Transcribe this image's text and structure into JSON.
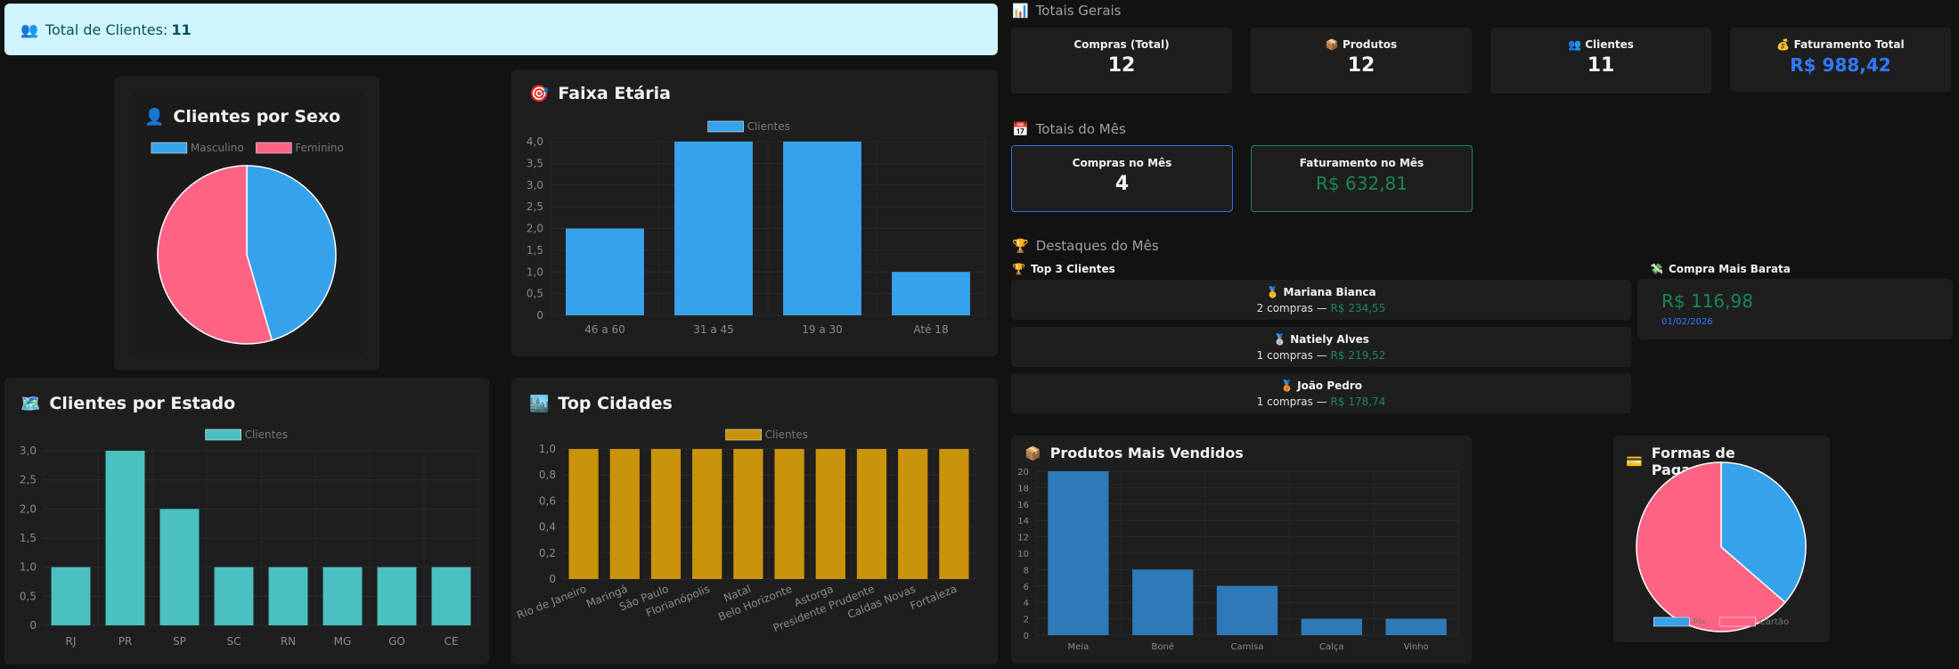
{
  "alert": {
    "icon": "👥",
    "label": "Total de Clientes:",
    "value": "11"
  },
  "sexo": {
    "title": "Clientes por Sexo",
    "icon": "👤",
    "chart_data": {
      "type": "pie",
      "categories": [
        "Masculino",
        "Feminino"
      ],
      "values": [
        5,
        6
      ],
      "colors": [
        "#36a2eb",
        "#ff6384"
      ],
      "legend": "top"
    }
  },
  "faixa": {
    "title": "Faixa Etária",
    "icon": "🎯",
    "chart_data": {
      "type": "bar",
      "categories": [
        "46 a 60",
        "31 a 45",
        "19 a 30",
        "Até 18"
      ],
      "series": [
        {
          "name": "Clientes",
          "values": [
            2,
            4,
            4,
            1
          ],
          "color": "#36a2eb"
        }
      ],
      "ylim": [
        0,
        4
      ],
      "yticks": [
        "0",
        "0,5",
        "1,0",
        "1,5",
        "2,0",
        "2,5",
        "3,0",
        "3,5",
        "4,0"
      ],
      "grid": true,
      "legend": "top"
    }
  },
  "estado": {
    "title": "Clientes por Estado",
    "icon": "🗺️",
    "chart_data": {
      "type": "bar",
      "categories": [
        "RJ",
        "PR",
        "SP",
        "SC",
        "RN",
        "MG",
        "GO",
        "CE"
      ],
      "series": [
        {
          "name": "Clientes",
          "values": [
            1,
            3,
            2,
            1,
            1,
            1,
            1,
            1
          ],
          "color": "#4bc0c0"
        }
      ],
      "ylim": [
        0,
        3
      ],
      "yticks": [
        "0",
        "0,5",
        "1,0",
        "1,5",
        "2,0",
        "2,5",
        "3,0"
      ],
      "grid": true,
      "legend": "top"
    }
  },
  "cidades": {
    "title": "Top Cidades",
    "icon": "🏙️",
    "chart_data": {
      "type": "bar",
      "categories": [
        "Rio de Janeiro",
        "Maringá",
        "São Paulo",
        "Florianópolis",
        "Natal",
        "Belo Horizonte",
        "Astorga",
        "Presidente Prudente",
        "Caldas Novas",
        "Fortaleza"
      ],
      "series": [
        {
          "name": "Clientes",
          "values": [
            1,
            1,
            1,
            1,
            1,
            1,
            1,
            1,
            1,
            1
          ],
          "color": "#c9930a"
        }
      ],
      "ylim": [
        0,
        1
      ],
      "yticks": [
        "0",
        "0,2",
        "0,4",
        "0,6",
        "0,8",
        "1,0"
      ],
      "grid": true,
      "legend": "top"
    }
  },
  "totais": {
    "title": "Totais Gerais",
    "icon": "📊",
    "items": [
      {
        "icon": "",
        "label": "Compras (Total)",
        "value": "12"
      },
      {
        "icon": "📦",
        "label": "Produtos",
        "value": "12"
      },
      {
        "icon": "👥",
        "label": "Clientes",
        "value": "11"
      },
      {
        "icon": "💰",
        "label": "Faturamento Total",
        "value": "R$ 988,42"
      }
    ]
  },
  "mes": {
    "title": "Totais do Mês",
    "icon": "📅",
    "items": [
      {
        "label": "Compras no Mês",
        "value": "4"
      },
      {
        "label": "Faturamento no Mês",
        "value": "R$ 632,81"
      }
    ]
  },
  "destaques": {
    "title": "Destaques do Mês",
    "icon": "🏆",
    "top_title": "Top 3 Clientes",
    "top_icon": "🏆",
    "top": [
      {
        "medal": "🥇",
        "name": "Mariana Bianca",
        "desc": "2 compras — ",
        "amount": "R$ 234,55"
      },
      {
        "medal": "🥈",
        "name": "Natiely Alves",
        "desc": "1 compras — ",
        "amount": "R$ 219,52"
      },
      {
        "medal": "🥉",
        "name": "João Pedro",
        "desc": "1 compras — ",
        "amount": "R$ 178,74"
      }
    ],
    "cheap_title": "Compra Mais Barata",
    "cheap_icon": "💸",
    "cheap_value": "R$ 116,98",
    "cheap_date": "01/02/2026"
  },
  "produtos": {
    "title": "Produtos Mais Vendidos",
    "icon": "📦",
    "chart_data": {
      "type": "bar",
      "categories": [
        "Meia",
        "Boné",
        "Camisa",
        "Calça",
        "Vinho"
      ],
      "values": [
        20,
        8,
        6,
        2,
        2
      ],
      "color": "#2e7ab8",
      "ylim": [
        0,
        20
      ],
      "yticks": [
        "0",
        "2",
        "4",
        "6",
        "8",
        "10",
        "12",
        "14",
        "16",
        "18",
        "20"
      ],
      "grid": true
    }
  },
  "pagamento": {
    "title": "Formas de Pagamento",
    "icon": "💳",
    "chart_data": {
      "type": "pie",
      "categories": [
        "Pix",
        "Cartão"
      ],
      "values": [
        4,
        7
      ],
      "colors": [
        "#36a2eb",
        "#ff6384"
      ],
      "legend": "bottom"
    }
  }
}
